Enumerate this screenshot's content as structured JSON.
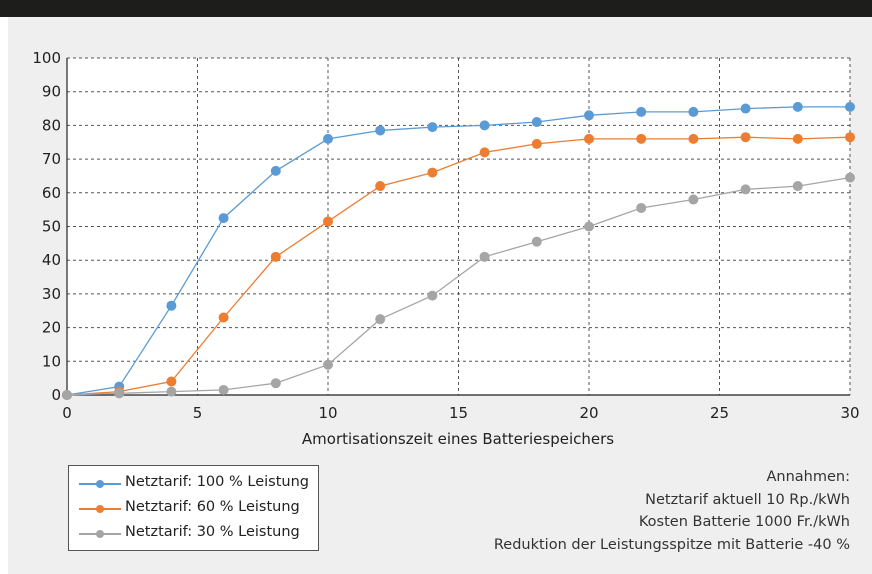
{
  "chart_data": {
    "type": "line",
    "xlabel": "Amortisationszeit eines Batteriespeichers",
    "ylabel": "",
    "xlim": [
      0,
      30
    ],
    "ylim": [
      0,
      100
    ],
    "xticks": [
      0,
      5,
      10,
      15,
      20,
      25,
      30
    ],
    "yticks": [
      0,
      10,
      20,
      30,
      40,
      50,
      60,
      70,
      80,
      90,
      100
    ],
    "grid": true,
    "legend_position": "bottom-left",
    "series": [
      {
        "name": "Netztarif: 100 % Leistung",
        "color": "#5b9bd5",
        "x": [
          0,
          2,
          4,
          6,
          8,
          10,
          12,
          14,
          16,
          18,
          20,
          22,
          24,
          26,
          28,
          30
        ],
        "y": [
          0,
          2.5,
          26.5,
          52.5,
          66.5,
          76,
          78.5,
          79.5,
          80,
          81,
          83,
          84,
          84,
          85,
          85.5,
          85.5
        ]
      },
      {
        "name": "Netztarif: 60 % Leistung",
        "color": "#ed7d31",
        "x": [
          0,
          2,
          4,
          6,
          8,
          10,
          12,
          14,
          16,
          18,
          20,
          22,
          24,
          26,
          28,
          30
        ],
        "y": [
          0,
          1,
          4,
          23,
          41,
          51.5,
          62,
          66,
          72,
          74.5,
          76,
          76,
          76,
          76.5,
          76,
          76.5
        ]
      },
      {
        "name": "Netztarif: 30 % Leistung",
        "color": "#a5a5a5",
        "x": [
          0,
          2,
          4,
          6,
          8,
          10,
          12,
          14,
          16,
          18,
          20,
          22,
          24,
          26,
          28,
          30
        ],
        "y": [
          0,
          0.5,
          1,
          1.5,
          3.5,
          9,
          22.5,
          29.5,
          41,
          45.5,
          50,
          55.5,
          58,
          61,
          62,
          64.5
        ]
      }
    ]
  },
  "notes": {
    "title": "Annahmen:",
    "line1": "Netztarif aktuell 10 Rp./kWh",
    "line2": "Kosten Batterie 1000 Fr./kWh",
    "line3": "Reduktion der Leistungsspitze mit Batterie -40 %"
  }
}
